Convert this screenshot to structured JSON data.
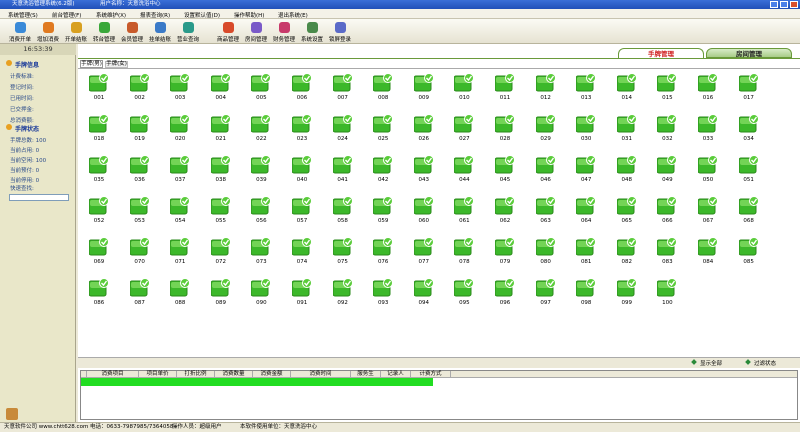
{
  "title_bar": {
    "title": "天意洗浴管理系统(6.2版)",
    "user": "用户名称：天意洗浴中心"
  },
  "menu": [
    "系统管理(S)",
    "前台管理(F)",
    "系统维护(X)",
    "报表查询(R)",
    "设置默认值(D)",
    "操作帮助(H)",
    "退出系统(E)"
  ],
  "toolbar": [
    "消费开单",
    "增加消费",
    "开单结账",
    "转台管理",
    "会员管理",
    "挂单结账",
    "营业查询",
    "商品管理",
    "房间管理",
    "财务管理",
    "系统设置",
    "锁屏登录"
  ],
  "clock": "16:53:39",
  "info_panel": {
    "title": "手牌信息",
    "fields": [
      "计费标准:",
      "登记时间:",
      "已用时间:",
      "已交押金:",
      "总消费额:"
    ]
  },
  "status_panel": {
    "title": "手牌状态",
    "fields": [
      "手牌总数: 100",
      "当前占用: 0",
      "当前空闲: 100",
      "当前预付: 0",
      "当前停用: 0"
    ],
    "search_label": "快速查找:"
  },
  "tabs": [
    "手牌管理",
    "房间管理"
  ],
  "sub_tabs": [
    "手牌(男)",
    "手牌(女)"
  ],
  "plates": [
    "001",
    "002",
    "003",
    "004",
    "005",
    "006",
    "007",
    "008",
    "009",
    "010",
    "011",
    "012",
    "013",
    "014",
    "015",
    "016",
    "017",
    "018",
    "019",
    "020",
    "021",
    "022",
    "023",
    "024",
    "025",
    "026",
    "027",
    "028",
    "029",
    "030",
    "031",
    "032",
    "033",
    "034",
    "035",
    "036",
    "037",
    "038",
    "039",
    "040",
    "041",
    "042",
    "043",
    "044",
    "045",
    "046",
    "047",
    "048",
    "049",
    "050",
    "051",
    "052",
    "053",
    "054",
    "055",
    "056",
    "057",
    "058",
    "059",
    "060",
    "061",
    "062",
    "063",
    "064",
    "065",
    "066",
    "067",
    "068",
    "069",
    "070",
    "071",
    "072",
    "073",
    "074",
    "075",
    "076",
    "077",
    "078",
    "079",
    "080",
    "081",
    "082",
    "083",
    "084",
    "085",
    "086",
    "087",
    "088",
    "089",
    "090",
    "091",
    "092",
    "093",
    "094",
    "095",
    "096",
    "097",
    "098",
    "099",
    "100"
  ],
  "filter": [
    "显示全部",
    "过滤状态"
  ],
  "table": {
    "columns": [
      "消费项目",
      "项目单价",
      "打折比例",
      "消费数量",
      "消费金额",
      "消费时间",
      "服务生",
      "记录人",
      "计费方式"
    ]
  },
  "footer": [
    "天意软件公司 www.chtt628.com 电话：0633-7987985/7364058",
    "操作人员：超级用户",
    "本软件使用单位：天意洗浴中心"
  ]
}
